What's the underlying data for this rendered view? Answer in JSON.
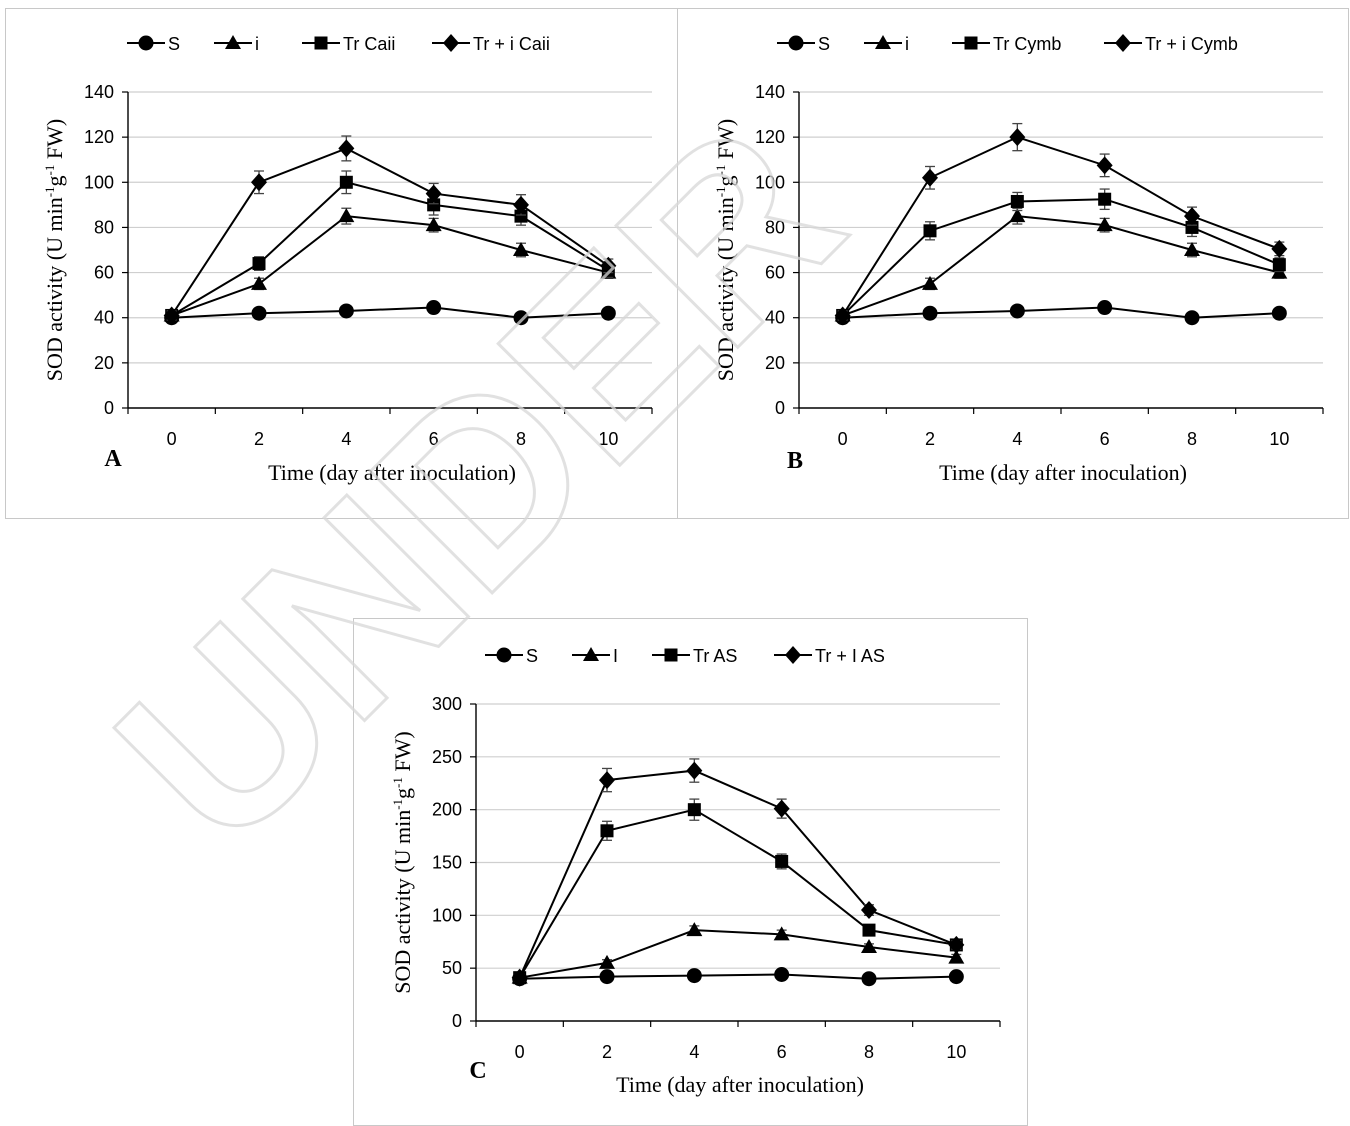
{
  "watermark": "UNDER",
  "chart_data": [
    {
      "type": "line",
      "panel_label": "A",
      "xlabel": "Time (day after inoculation)",
      "ylabel": "SOD activity (U min-1g-1 FW)",
      "ylabel_parts": [
        "SOD activity (U min",
        "-1",
        "g",
        "-1",
        " FW)"
      ],
      "x": [
        0,
        2,
        4,
        6,
        8,
        10
      ],
      "xlim": [
        -1,
        11
      ],
      "ylim": [
        0,
        140
      ],
      "yticks": [
        0,
        20,
        40,
        60,
        80,
        100,
        120,
        140
      ],
      "grid": true,
      "legend": "top",
      "series": [
        {
          "name": "S",
          "marker": "circle",
          "values": [
            40,
            42,
            43,
            44.5,
            40,
            42
          ],
          "err": [
            1.5,
            1.5,
            1.5,
            1.5,
            1.5,
            1.5
          ]
        },
        {
          "name": "i",
          "marker": "triangle",
          "values": [
            41,
            55,
            85,
            81,
            70,
            60
          ],
          "err": [
            2,
            2.5,
            3.5,
            3,
            3,
            2.5
          ]
        },
        {
          "name": "Tr Caii",
          "marker": "square",
          "values": [
            41,
            64,
            100,
            90,
            85,
            61
          ],
          "err": [
            2,
            3,
            5,
            4.5,
            4,
            3
          ]
        },
        {
          "name": "Tr + i Caii",
          "marker": "diamond",
          "values": [
            41,
            100,
            115,
            95,
            90,
            63
          ],
          "err": [
            2,
            5,
            5.5,
            4.5,
            4.5,
            3
          ]
        }
      ]
    },
    {
      "type": "line",
      "panel_label": "B",
      "xlabel": "Time (day after inoculation)",
      "ylabel": "SOD activity (U min-1g-1 FW)",
      "ylabel_parts": [
        "SOD activity (U min",
        "-1",
        "g",
        "-1",
        " FW)"
      ],
      "x": [
        0,
        2,
        4,
        6,
        8,
        10
      ],
      "xlim": [
        -1,
        11
      ],
      "ylim": [
        0,
        140
      ],
      "yticks": [
        0,
        20,
        40,
        60,
        80,
        100,
        120,
        140
      ],
      "grid": true,
      "legend": "top",
      "series": [
        {
          "name": "S",
          "marker": "circle",
          "values": [
            40,
            42,
            43,
            44.5,
            40,
            42
          ],
          "err": [
            1.5,
            1.5,
            1.5,
            1.5,
            1.5,
            1.5
          ]
        },
        {
          "name": "i",
          "marker": "triangle",
          "values": [
            41,
            55,
            85,
            81,
            70,
            60
          ],
          "err": [
            2,
            2.5,
            3.5,
            3,
            3,
            2.5
          ]
        },
        {
          "name": "Tr Cymb",
          "marker": "square",
          "values": [
            41,
            78.5,
            91.5,
            92.5,
            80,
            63.5
          ],
          "err": [
            2,
            4,
            4,
            4.5,
            4,
            3
          ]
        },
        {
          "name": "Tr + i Cymb",
          "marker": "diamond",
          "values": [
            41,
            102,
            120,
            107.5,
            85,
            70.5
          ],
          "err": [
            2,
            5,
            6,
            5,
            4,
            3
          ]
        }
      ]
    },
    {
      "type": "line",
      "panel_label": "C",
      "xlabel": "Time (day after inoculation)",
      "ylabel": "SOD activity (U min-1g-1 FW)",
      "ylabel_parts": [
        "SOD activity (U min",
        "-1",
        "g",
        "-1",
        " FW)"
      ],
      "x": [
        0,
        2,
        4,
        6,
        8,
        10
      ],
      "xlim": [
        -1,
        11
      ],
      "ylim": [
        0,
        300
      ],
      "yticks": [
        0,
        50,
        100,
        150,
        200,
        250,
        300
      ],
      "grid": true,
      "legend": "top",
      "series": [
        {
          "name": "S",
          "marker": "circle",
          "values": [
            40,
            42,
            43,
            44,
            40,
            42
          ],
          "err": [
            2,
            2,
            2,
            2,
            2,
            2
          ]
        },
        {
          "name": "I",
          "marker": "triangle",
          "values": [
            41,
            55,
            86,
            82,
            70,
            60
          ],
          "err": [
            3,
            3,
            4,
            4,
            3,
            3
          ]
        },
        {
          "name": "Tr AS",
          "marker": "square",
          "values": [
            41,
            180,
            200,
            151,
            86,
            72
          ],
          "err": [
            3,
            9,
            10,
            7,
            5,
            4
          ]
        },
        {
          "name": "Tr + I AS",
          "marker": "diamond",
          "values": [
            41,
            228,
            237,
            201,
            105,
            72
          ],
          "err": [
            3,
            11,
            11,
            9,
            5,
            4
          ]
        }
      ]
    }
  ]
}
